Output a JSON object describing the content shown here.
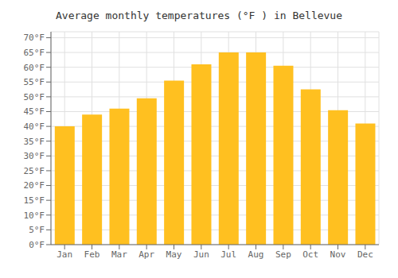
{
  "chart_data": {
    "type": "bar",
    "title": "Average monthly temperatures (°F ) in Bellevue",
    "categories": [
      "Jan",
      "Feb",
      "Mar",
      "Apr",
      "May",
      "Jun",
      "Jul",
      "Aug",
      "Sep",
      "Oct",
      "Nov",
      "Dec"
    ],
    "values": [
      40,
      44,
      46,
      49.5,
      55.5,
      61,
      65,
      65,
      60.5,
      52.5,
      45.5,
      41
    ],
    "color": "#FFC020",
    "ylim": [
      0,
      72
    ],
    "yticks": [
      {
        "value": 0,
        "label": "0°F"
      },
      {
        "value": 5,
        "label": "5°F"
      },
      {
        "value": 10,
        "label": "10°F"
      },
      {
        "value": 15,
        "label": "15°F"
      },
      {
        "value": 20,
        "label": "20°F"
      },
      {
        "value": 25,
        "label": "25°F"
      },
      {
        "value": 30,
        "label": "30°F"
      },
      {
        "value": 35,
        "label": "35°F"
      },
      {
        "value": 40,
        "label": "40°F"
      },
      {
        "value": 45,
        "label": "45°F"
      },
      {
        "value": 50,
        "label": "50°F"
      },
      {
        "value": 55,
        "label": "55°F"
      },
      {
        "value": 60,
        "label": "60°F"
      },
      {
        "value": 65,
        "label": "65°F"
      },
      {
        "value": 70,
        "label": "70°F"
      }
    ],
    "grid": true
  }
}
